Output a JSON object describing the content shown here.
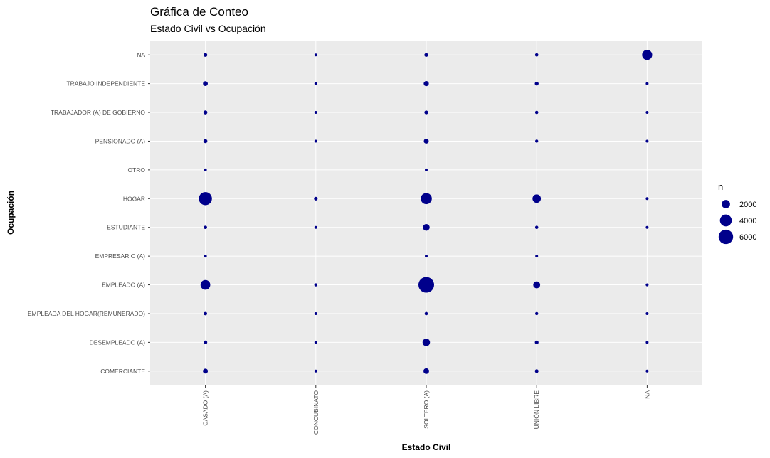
{
  "chart_data": {
    "type": "scatter",
    "title": "Gráfica de Conteo",
    "subtitle": "Estado Civil vs Ocupación",
    "xlabel": "Estado Civil",
    "ylabel": "Ocupación",
    "x_categories": [
      "CASADO (A)",
      "CONCUBINATO",
      "SOLTERO (A)",
      "UNIÓN LIBRE",
      "NA"
    ],
    "y_categories": [
      "COMERCIANTE",
      "DESEMPLEADO (A)",
      "EMPLEADA DEL HOGAR(REMUNERADO)",
      "EMPLEADO (A)",
      "EMPRESARIO (A)",
      "ESTUDIANTE",
      "HOGAR",
      "OTRO",
      "PENSIONADO (A)",
      "TRABAJADOR (A) DE GOBIERNO",
      "TRABAJO INDEPENDIENTE",
      "NA"
    ],
    "size_variable": "n",
    "size_legend": [
      2000,
      4000,
      6000
    ],
    "point_color": "#00008B",
    "panel_color": "#EBEBEB",
    "grid": true,
    "legend_position": "right",
    "points": [
      {
        "x": "CASADO (A)",
        "y": "NA",
        "n": 400
      },
      {
        "x": "CONCUBINATO",
        "y": "NA",
        "n": 130
      },
      {
        "x": "SOLTERO (A)",
        "y": "NA",
        "n": 400
      },
      {
        "x": "UNIÓN LIBRE",
        "y": "NA",
        "n": 320
      },
      {
        "x": "NA",
        "y": "NA",
        "n": 2900
      },
      {
        "x": "CASADO (A)",
        "y": "TRABAJO INDEPENDIENTE",
        "n": 650
      },
      {
        "x": "CONCUBINATO",
        "y": "TRABAJO INDEPENDIENTE",
        "n": 120
      },
      {
        "x": "SOLTERO (A)",
        "y": "TRABAJO INDEPENDIENTE",
        "n": 750
      },
      {
        "x": "UNIÓN LIBRE",
        "y": "TRABAJO INDEPENDIENTE",
        "n": 420
      },
      {
        "x": "NA",
        "y": "TRABAJO INDEPENDIENTE",
        "n": 120
      },
      {
        "x": "CASADO (A)",
        "y": "TRABAJADOR (A) DE GOBIERNO",
        "n": 450
      },
      {
        "x": "CONCUBINATO",
        "y": "TRABAJADOR (A) DE GOBIERNO",
        "n": 120
      },
      {
        "x": "SOLTERO (A)",
        "y": "TRABAJADOR (A) DE GOBIERNO",
        "n": 400
      },
      {
        "x": "UNIÓN LIBRE",
        "y": "TRABAJADOR (A) DE GOBIERNO",
        "n": 300
      },
      {
        "x": "NA",
        "y": "TRABAJADOR (A) DE GOBIERNO",
        "n": 120
      },
      {
        "x": "CASADO (A)",
        "y": "PENSIONADO (A)",
        "n": 450
      },
      {
        "x": "CONCUBINATO",
        "y": "PENSIONADO (A)",
        "n": 110
      },
      {
        "x": "SOLTERO (A)",
        "y": "PENSIONADO (A)",
        "n": 700
      },
      {
        "x": "UNIÓN LIBRE",
        "y": "PENSIONADO (A)",
        "n": 270
      },
      {
        "x": "NA",
        "y": "PENSIONADO (A)",
        "n": 110
      },
      {
        "x": "CASADO (A)",
        "y": "OTRO",
        "n": 150
      },
      {
        "x": "SOLTERO (A)",
        "y": "OTRO",
        "n": 120
      },
      {
        "x": "CASADO (A)",
        "y": "HOGAR",
        "n": 4900
      },
      {
        "x": "CONCUBINATO",
        "y": "HOGAR",
        "n": 380
      },
      {
        "x": "SOLTERO (A)",
        "y": "HOGAR",
        "n": 3500
      },
      {
        "x": "UNIÓN LIBRE",
        "y": "HOGAR",
        "n": 2000
      },
      {
        "x": "NA",
        "y": "HOGAR",
        "n": 110
      },
      {
        "x": "CASADO (A)",
        "y": "ESTUDIANTE",
        "n": 320
      },
      {
        "x": "CONCUBINATO",
        "y": "ESTUDIANTE",
        "n": 120
      },
      {
        "x": "SOLTERO (A)",
        "y": "ESTUDIANTE",
        "n": 1300
      },
      {
        "x": "UNIÓN LIBRE",
        "y": "ESTUDIANTE",
        "n": 300
      },
      {
        "x": "NA",
        "y": "ESTUDIANTE",
        "n": 110
      },
      {
        "x": "CASADO (A)",
        "y": "EMPRESARIO (A)",
        "n": 140
      },
      {
        "x": "SOLTERO (A)",
        "y": "EMPRESARIO (A)",
        "n": 140
      },
      {
        "x": "UNIÓN LIBRE",
        "y": "EMPRESARIO (A)",
        "n": 110
      },
      {
        "x": "CASADO (A)",
        "y": "EMPLEADO (A)",
        "n": 2700
      },
      {
        "x": "CONCUBINATO",
        "y": "EMPLEADO (A)",
        "n": 280
      },
      {
        "x": "SOLTERO (A)",
        "y": "EMPLEADO (A)",
        "n": 7000
      },
      {
        "x": "UNIÓN LIBRE",
        "y": "EMPLEADO (A)",
        "n": 1400
      },
      {
        "x": "NA",
        "y": "EMPLEADO (A)",
        "n": 250
      },
      {
        "x": "CASADO (A)",
        "y": "EMPLEADA DEL HOGAR(REMUNERADO)",
        "n": 330
      },
      {
        "x": "CONCUBINATO",
        "y": "EMPLEADA DEL HOGAR(REMUNERADO)",
        "n": 120
      },
      {
        "x": "SOLTERO (A)",
        "y": "EMPLEADA DEL HOGAR(REMUNERADO)",
        "n": 300
      },
      {
        "x": "UNIÓN LIBRE",
        "y": "EMPLEADA DEL HOGAR(REMUNERADO)",
        "n": 280
      },
      {
        "x": "NA",
        "y": "EMPLEADA DEL HOGAR(REMUNERADO)",
        "n": 110
      },
      {
        "x": "CASADO (A)",
        "y": "DESEMPLEADO (A)",
        "n": 400
      },
      {
        "x": "CONCUBINATO",
        "y": "DESEMPLEADO (A)",
        "n": 120
      },
      {
        "x": "SOLTERO (A)",
        "y": "DESEMPLEADO (A)",
        "n": 1600
      },
      {
        "x": "UNIÓN LIBRE",
        "y": "DESEMPLEADO (A)",
        "n": 400
      },
      {
        "x": "NA",
        "y": "DESEMPLEADO (A)",
        "n": 110
      },
      {
        "x": "CASADO (A)",
        "y": "COMERCIANTE",
        "n": 700
      },
      {
        "x": "CONCUBINATO",
        "y": "COMERCIANTE",
        "n": 120
      },
      {
        "x": "SOLTERO (A)",
        "y": "COMERCIANTE",
        "n": 900
      },
      {
        "x": "UNIÓN LIBRE",
        "y": "COMERCIANTE",
        "n": 380
      },
      {
        "x": "NA",
        "y": "COMERCIANTE",
        "n": 120
      }
    ]
  }
}
